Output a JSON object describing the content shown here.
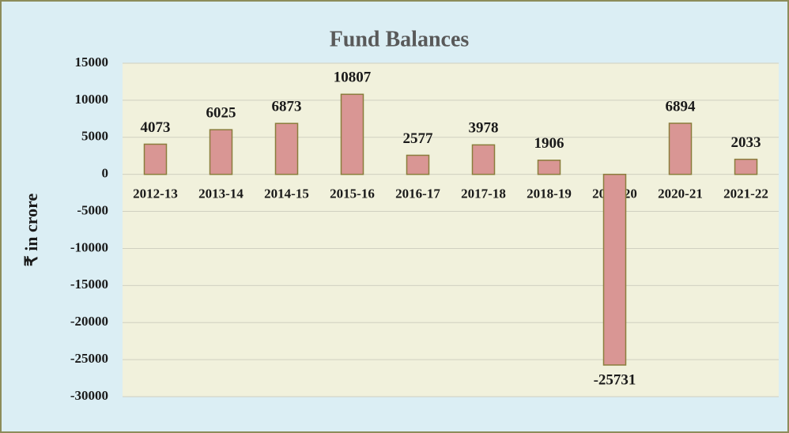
{
  "chart_data": {
    "type": "bar",
    "title": "Fund Balances",
    "y_label": "₹ in crore",
    "categories": [
      "2012-13",
      "2013-14",
      "2014-15",
      "2015-16",
      "2016-17",
      "2017-18",
      "2018-19",
      "2019-20",
      "2020-21",
      "2021-22"
    ],
    "values": [
      4073,
      6025,
      6873,
      10807,
      2577,
      3978,
      1906,
      -25731,
      6894,
      2033
    ],
    "color": "#d99694",
    "ylim": [
      -30000,
      15000
    ],
    "yticks": [
      -30000,
      -25000,
      -20000,
      -15000,
      -10000,
      -5000,
      0,
      5000,
      10000,
      15000
    ],
    "grid": true
  }
}
